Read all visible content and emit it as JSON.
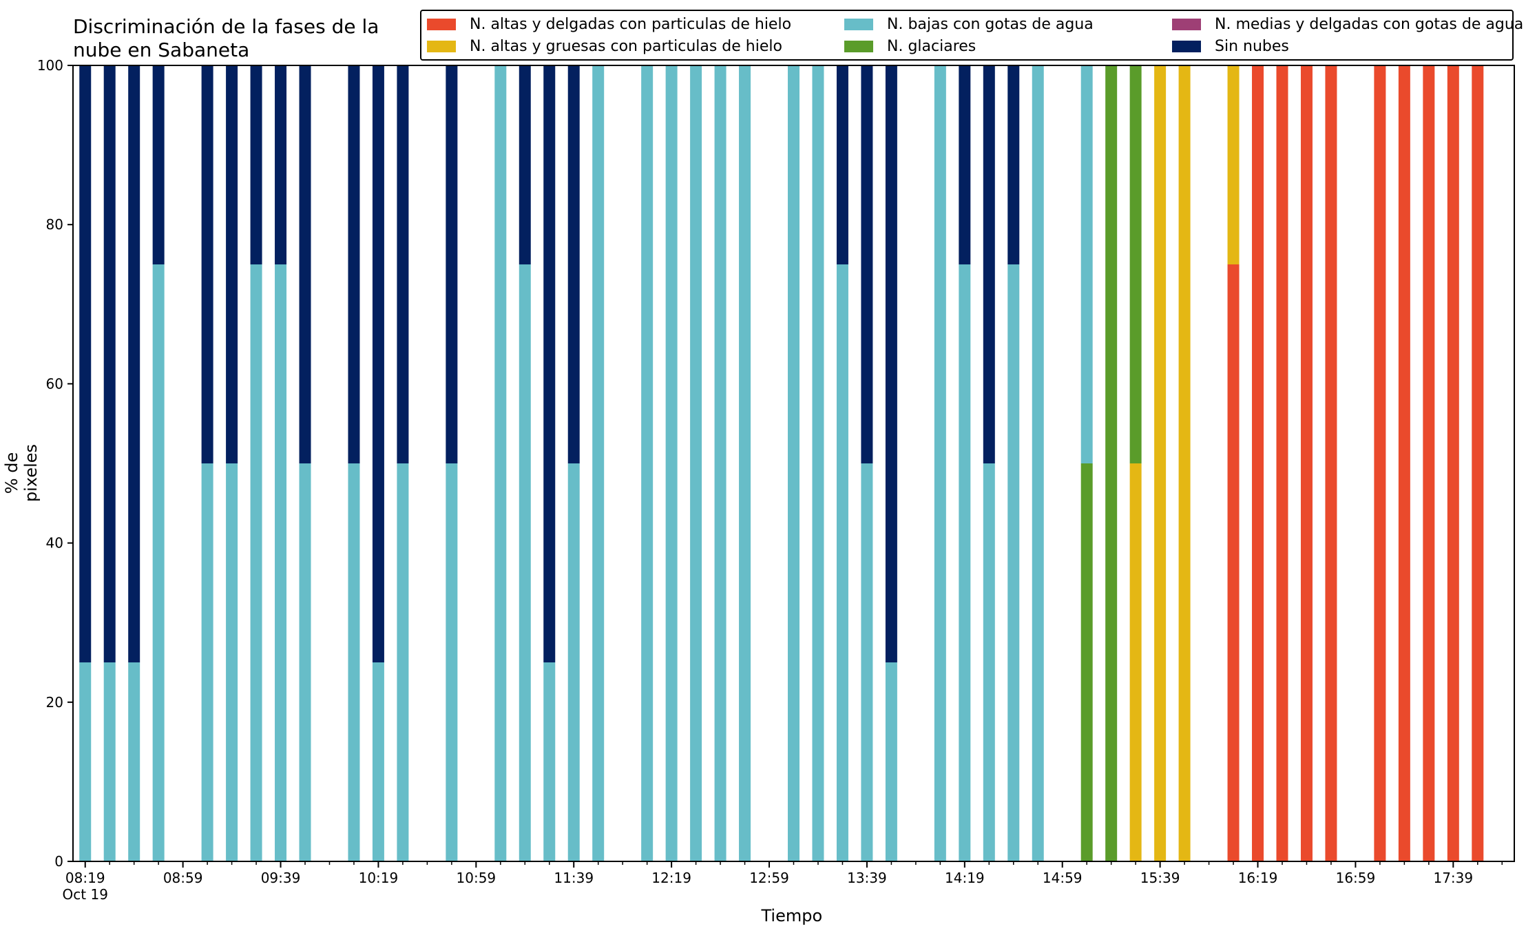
{
  "chart_data": {
    "type": "bar",
    "stacked": true,
    "title": "Discriminación de la fases de la nube en Sabaneta",
    "title_lines": [
      "Discriminación de la fases de la",
      "nube en Sabaneta"
    ],
    "xlabel": "Tiempo",
    "ylabel": "% de pixeles",
    "ylim": [
      0,
      100
    ],
    "yticks": [
      0,
      20,
      40,
      60,
      80,
      100
    ],
    "xlim": [
      "08:14",
      "18:04"
    ],
    "bar_interval_minutes": 10,
    "xtick_major": [
      {
        "time": "08:19",
        "label": "08:19",
        "sublabel": "Oct 19"
      },
      {
        "time": "08:59",
        "label": "08:59"
      },
      {
        "time": "09:39",
        "label": "09:39"
      },
      {
        "time": "10:19",
        "label": "10:19"
      },
      {
        "time": "10:59",
        "label": "10:59"
      },
      {
        "time": "11:39",
        "label": "11:39"
      },
      {
        "time": "12:19",
        "label": "12:19"
      },
      {
        "time": "12:59",
        "label": "12:59"
      },
      {
        "time": "13:39",
        "label": "13:39"
      },
      {
        "time": "14:19",
        "label": "14:19"
      },
      {
        "time": "14:59",
        "label": "14:59"
      },
      {
        "time": "15:39",
        "label": "15:39"
      },
      {
        "time": "16:19",
        "label": "16:19"
      },
      {
        "time": "16:59",
        "label": "16:59"
      },
      {
        "time": "17:39",
        "label": "17:39"
      }
    ],
    "grid": false,
    "legend_position": "top-right",
    "legend_columns": 3,
    "series": [
      {
        "key": "altas_delgadas",
        "name": "N. altas y delgadas con particulas de hielo",
        "color": "#ea4a2c"
      },
      {
        "key": "altas_gruesas",
        "name": "N. altas y gruesas con particulas de hielo",
        "color": "#e4b714"
      },
      {
        "key": "bajas",
        "name": "N. bajas con gotas de agua",
        "color": "#67bdc8"
      },
      {
        "key": "glaciares",
        "name": "N. glaciares",
        "color": "#5a9c2a"
      },
      {
        "key": "medias",
        "name": "N. medias y delgadas con gotas de agua",
        "color": "#9e3f75"
      },
      {
        "key": "sin_nubes",
        "name": "Sin nubes",
        "color": "#03205f"
      }
    ],
    "stack_order": [
      "altas_delgadas",
      "altas_gruesas",
      "glaciares",
      "bajas",
      "medias",
      "sin_nubes"
    ],
    "bars": [
      {
        "time": "08:19",
        "bajas": 25,
        "sin_nubes": 75
      },
      {
        "time": "08:29",
        "bajas": 25,
        "sin_nubes": 75
      },
      {
        "time": "08:39",
        "bajas": 25,
        "sin_nubes": 75
      },
      {
        "time": "08:49",
        "bajas": 75,
        "sin_nubes": 25
      },
      {
        "time": "09:09",
        "bajas": 50,
        "sin_nubes": 50
      },
      {
        "time": "09:19",
        "bajas": 50,
        "sin_nubes": 50
      },
      {
        "time": "09:29",
        "bajas": 75,
        "sin_nubes": 25
      },
      {
        "time": "09:39",
        "bajas": 75,
        "sin_nubes": 25
      },
      {
        "time": "09:49",
        "bajas": 50,
        "sin_nubes": 50
      },
      {
        "time": "10:09",
        "bajas": 50,
        "sin_nubes": 50
      },
      {
        "time": "10:19",
        "bajas": 25,
        "sin_nubes": 75
      },
      {
        "time": "10:29",
        "bajas": 50,
        "sin_nubes": 50
      },
      {
        "time": "10:49",
        "bajas": 50,
        "sin_nubes": 50
      },
      {
        "time": "11:09",
        "bajas": 100
      },
      {
        "time": "11:19",
        "bajas": 75,
        "sin_nubes": 25
      },
      {
        "time": "11:29",
        "bajas": 25,
        "sin_nubes": 75
      },
      {
        "time": "11:39",
        "bajas": 50,
        "sin_nubes": 50
      },
      {
        "time": "11:49",
        "bajas": 100
      },
      {
        "time": "12:09",
        "bajas": 100
      },
      {
        "time": "12:19",
        "bajas": 100
      },
      {
        "time": "12:29",
        "bajas": 100
      },
      {
        "time": "12:39",
        "bajas": 100
      },
      {
        "time": "12:49",
        "bajas": 100
      },
      {
        "time": "13:09",
        "bajas": 100
      },
      {
        "time": "13:19",
        "bajas": 100
      },
      {
        "time": "13:29",
        "bajas": 75,
        "sin_nubes": 25
      },
      {
        "time": "13:39",
        "bajas": 50,
        "sin_nubes": 50
      },
      {
        "time": "13:49",
        "bajas": 25,
        "sin_nubes": 75
      },
      {
        "time": "14:09",
        "bajas": 100
      },
      {
        "time": "14:19",
        "bajas": 75,
        "sin_nubes": 25
      },
      {
        "time": "14:29",
        "bajas": 50,
        "sin_nubes": 50
      },
      {
        "time": "14:39",
        "bajas": 75,
        "sin_nubes": 25
      },
      {
        "time": "14:49",
        "bajas": 100
      },
      {
        "time": "15:09",
        "bajas": 50,
        "glaciares": 50
      },
      {
        "time": "15:19",
        "glaciares": 100
      },
      {
        "time": "15:29",
        "altas_gruesas": 50,
        "glaciares": 50
      },
      {
        "time": "15:39",
        "altas_gruesas": 100
      },
      {
        "time": "15:49",
        "altas_gruesas": 100
      },
      {
        "time": "16:09",
        "altas_delgadas": 75,
        "altas_gruesas": 25
      },
      {
        "time": "16:19",
        "altas_delgadas": 100
      },
      {
        "time": "16:29",
        "altas_delgadas": 100
      },
      {
        "time": "16:39",
        "altas_delgadas": 100
      },
      {
        "time": "16:49",
        "altas_delgadas": 100
      },
      {
        "time": "17:09",
        "altas_delgadas": 100
      },
      {
        "time": "17:19",
        "altas_delgadas": 100
      },
      {
        "time": "17:29",
        "altas_delgadas": 100
      },
      {
        "time": "17:39",
        "altas_delgadas": 100
      },
      {
        "time": "17:49",
        "altas_delgadas": 100
      }
    ]
  }
}
